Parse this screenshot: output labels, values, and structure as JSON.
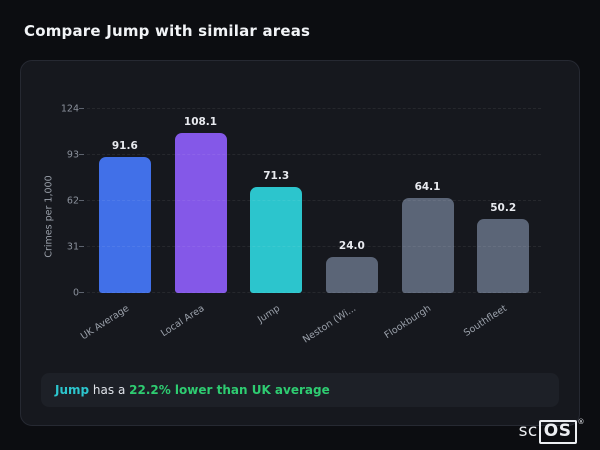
{
  "header": {
    "title": "Compare Jump with similar areas"
  },
  "chart_data": {
    "type": "bar",
    "title": "",
    "xlabel": "",
    "ylabel": "Crimes per 1,000",
    "categories": [
      "UK Average",
      "Local Area",
      "Jump",
      "Neston (Wi...",
      "Flookburgh",
      "Southfleet"
    ],
    "values": [
      91.6,
      108.1,
      71.3,
      24.0,
      64.1,
      50.2
    ],
    "value_labels": [
      "91.6",
      "108.1",
      "71.3",
      "24.0",
      "64.1",
      "50.2"
    ],
    "colors": [
      "#4170e8",
      "#8458e8",
      "#2cc5cd",
      "#5b6577",
      "#5b6577",
      "#5b6577"
    ],
    "yticks": [
      0,
      31,
      62,
      93,
      124
    ],
    "ylim": [
      0,
      124
    ],
    "grid": "horizontal-dashed",
    "legend": "none"
  },
  "callout": {
    "area": "Jump",
    "middle": " has a ",
    "highlight": "22.2% lower than UK average"
  },
  "logo": {
    "prefix": "sc",
    "suffix": "OS",
    "reg": "®"
  }
}
